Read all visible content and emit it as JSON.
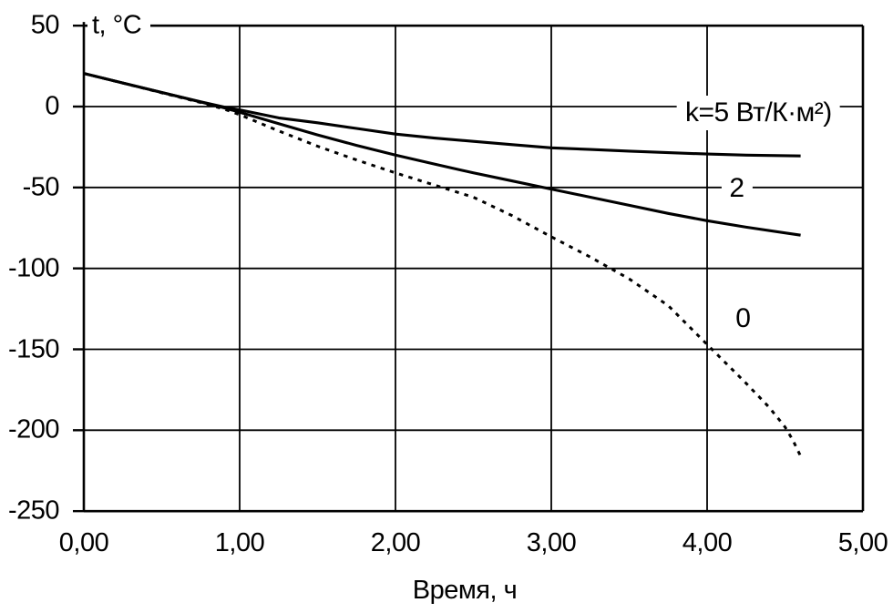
{
  "figure": {
    "background": "#ffffff",
    "ink": "#000000"
  },
  "chart_data": {
    "type": "line",
    "title": "",
    "xlabel": "Время, ч",
    "ylabel": "t, °C",
    "xlim": [
      0,
      5
    ],
    "ylim": [
      -250,
      50
    ],
    "grid": true,
    "legend_position": "inline-labels",
    "x_ticks": [
      {
        "v": 0,
        "label": "0,00"
      },
      {
        "v": 1,
        "label": "1,00"
      },
      {
        "v": 2,
        "label": "2,00"
      },
      {
        "v": 3,
        "label": "3,00"
      },
      {
        "v": 4,
        "label": "4,00"
      },
      {
        "v": 5,
        "label": "5,00"
      }
    ],
    "y_ticks": [
      {
        "v": 50,
        "label": "50"
      },
      {
        "v": 0,
        "label": "0"
      },
      {
        "v": -50,
        "label": "-50"
      },
      {
        "v": -100,
        "label": "-100"
      },
      {
        "v": -150,
        "label": "-150"
      },
      {
        "v": -200,
        "label": "-200"
      },
      {
        "v": -250,
        "label": "-250"
      }
    ],
    "series": [
      {
        "id": "k5",
        "name": "k=5",
        "line": "solid",
        "points": [
          [
            0,
            20.5
          ],
          [
            0.25,
            14.6
          ],
          [
            0.5,
            8.7
          ],
          [
            0.75,
            2.9
          ],
          [
            0.9,
            -0.3
          ],
          [
            1,
            -2
          ],
          [
            1.25,
            -7
          ],
          [
            1.5,
            -10
          ],
          [
            1.75,
            -13.5
          ],
          [
            2,
            -17
          ],
          [
            2.25,
            -19.5
          ],
          [
            2.5,
            -21.5
          ],
          [
            2.75,
            -23.5
          ],
          [
            3,
            -25.5
          ],
          [
            3.25,
            -26.5
          ],
          [
            3.5,
            -27.5
          ],
          [
            3.75,
            -28.5
          ],
          [
            4,
            -29.3
          ],
          [
            4.25,
            -30
          ],
          [
            4.6,
            -30.5
          ]
        ]
      },
      {
        "id": "k2",
        "name": "k=2",
        "line": "solid",
        "points": [
          [
            0,
            20.5
          ],
          [
            0.25,
            14.6
          ],
          [
            0.5,
            8.7
          ],
          [
            0.75,
            2.8
          ],
          [
            0.9,
            -0.8
          ],
          [
            1,
            -3.5
          ],
          [
            1.25,
            -10.5
          ],
          [
            1.5,
            -17.5
          ],
          [
            1.75,
            -24
          ],
          [
            2,
            -30
          ],
          [
            2.25,
            -35.5
          ],
          [
            2.5,
            -41
          ],
          [
            2.75,
            -46
          ],
          [
            3,
            -51
          ],
          [
            3.25,
            -56
          ],
          [
            3.5,
            -61
          ],
          [
            3.75,
            -66
          ],
          [
            4,
            -70.5
          ],
          [
            4.25,
            -74.5
          ],
          [
            4.6,
            -79.5
          ]
        ]
      },
      {
        "id": "k0",
        "name": "k=0",
        "line": "dashed",
        "points": [
          [
            0,
            20.5
          ],
          [
            0.25,
            14.5
          ],
          [
            0.5,
            8.5
          ],
          [
            0.75,
            2.5
          ],
          [
            0.9,
            -1.5
          ],
          [
            1,
            -5
          ],
          [
            1.25,
            -15
          ],
          [
            1.5,
            -24.5
          ],
          [
            1.75,
            -33
          ],
          [
            2,
            -41
          ],
          [
            2.25,
            -48.5
          ],
          [
            2.5,
            -56
          ],
          [
            2.75,
            -67.5
          ],
          [
            3,
            -80.5
          ],
          [
            3.25,
            -93
          ],
          [
            3.5,
            -106.5
          ],
          [
            3.75,
            -123
          ],
          [
            4,
            -147
          ],
          [
            4.25,
            -171
          ],
          [
            4.4,
            -186
          ],
          [
            4.5,
            -198
          ],
          [
            4.55,
            -206
          ],
          [
            4.6,
            -216
          ]
        ]
      }
    ],
    "annotations": [
      {
        "for": "k5",
        "text": "k=5 Вт/К·м²)",
        "x": 4.33,
        "t": -4
      },
      {
        "for": "k2",
        "text": "2",
        "x": 4.19,
        "t": -50.5
      },
      {
        "for": "k0",
        "text": "0",
        "x": 4.23,
        "t": -131
      }
    ]
  }
}
